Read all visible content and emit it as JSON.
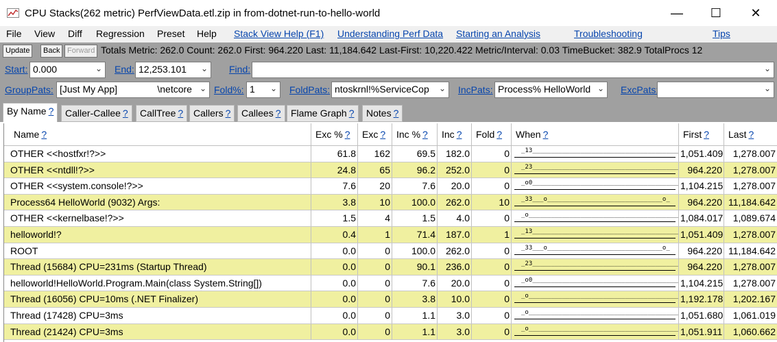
{
  "window": {
    "title": "CPU Stacks(262 metric) PerfViewData.etl.zip in from-dotnet-run-to-hello-world",
    "minimize": "—",
    "maximize": "☐",
    "close": "✕"
  },
  "menu": {
    "items": [
      "File",
      "View",
      "Diff",
      "Regression",
      "Preset",
      "Help"
    ],
    "links": [
      "Stack View Help (F1)",
      "Understanding Perf Data",
      "Starting an Analysis",
      "Troubleshooting",
      "Tips"
    ]
  },
  "toolbar": {
    "update": "Update",
    "back": "Back",
    "forward": "Forward",
    "totals": "Totals Metric: 262.0  Count: 262.0  First: 964.220  Last: 11,184.642  Last-First: 10,220.422  Metric/Interval: 0.03  TimeBucket: 382.9  TotalProcs 12"
  },
  "filters": {
    "start_label": "Start:",
    "start_value": "0.000",
    "end_label": "End:",
    "end_value": "12,253.101",
    "find_label": "Find:",
    "find_value": "",
    "grouppats_label": "GroupPats:",
    "grouppats_value": "[Just My App]               \\netcore",
    "fold_label": "Fold%:",
    "fold_value": "1",
    "foldpats_label": "FoldPats:",
    "foldpats_value": "ntoskrnl!%ServiceCop",
    "incpats_label": "IncPats:",
    "incpats_value": "Process% HelloWorld",
    "excpats_label": "ExcPats:",
    "excpats_value": ""
  },
  "tabs": [
    "By Name",
    "Caller-Callee",
    "CallTree",
    "Callers",
    "Callees",
    "Flame Graph",
    "Notes"
  ],
  "tab_help": "?",
  "columns": [
    "Name",
    "Exc %",
    "Exc",
    "Inc %",
    "Inc",
    "Fold",
    "When",
    "First",
    "Last"
  ],
  "rows": [
    {
      "name": "OTHER <<hostfxr!?>>",
      "exc_pct": "61.8",
      "exc": "162",
      "inc_pct": "69.5",
      "inc": "182.0",
      "fold": "0",
      "when": "_13____________________________________________",
      "first": "1,051.409",
      "last": "1,278.007"
    },
    {
      "name": "OTHER <<ntdll!?>>",
      "exc_pct": "24.8",
      "exc": "65",
      "inc_pct": "96.2",
      "inc": "252.0",
      "fold": "0",
      "when": "_23____________________________________________",
      "first": "964.220",
      "last": "1,278.007"
    },
    {
      "name": "OTHER <<system.console!?>>",
      "exc_pct": "7.6",
      "exc": "20",
      "inc_pct": "7.6",
      "inc": "20.0",
      "fold": "0",
      "when": "_o0____________________________________________",
      "first": "1,104.215",
      "last": "1,278.007"
    },
    {
      "name": "Process64 HelloWorld (9032) Args:",
      "exc_pct": "3.8",
      "exc": "10",
      "inc_pct": "100.0",
      "inc": "262.0",
      "fold": "10",
      "when": "_33___o_______________________________o_",
      "first": "964.220",
      "last": "11,184.642"
    },
    {
      "name": "OTHER <<kernelbase!?>>",
      "exc_pct": "1.5",
      "exc": "4",
      "inc_pct": "1.5",
      "inc": "4.0",
      "fold": "0",
      "when": "_o_____________________________________________",
      "first": "1,084.017",
      "last": "1,089.674"
    },
    {
      "name": "helloworld!?",
      "exc_pct": "0.4",
      "exc": "1",
      "inc_pct": "71.4",
      "inc": "187.0",
      "fold": "1",
      "when": "_13____________________________________________",
      "first": "1,051.409",
      "last": "1,278.007"
    },
    {
      "name": "ROOT",
      "exc_pct": "0.0",
      "exc": "0",
      "inc_pct": "100.0",
      "inc": "262.0",
      "fold": "0",
      "when": "_33___o_______________________________o_",
      "first": "964.220",
      "last": "11,184.642"
    },
    {
      "name": "Thread (15684) CPU=231ms (Startup Thread)",
      "exc_pct": "0.0",
      "exc": "0",
      "inc_pct": "90.1",
      "inc": "236.0",
      "fold": "0",
      "when": "_23____________________________________________",
      "first": "964.220",
      "last": "1,278.007"
    },
    {
      "name": "helloworld!HelloWorld.Program.Main(class System.String[])",
      "exc_pct": "0.0",
      "exc": "0",
      "inc_pct": "7.6",
      "inc": "20.0",
      "fold": "0",
      "when": "_o0____________________________________________",
      "first": "1,104.215",
      "last": "1,278.007"
    },
    {
      "name": "Thread (16056) CPU=10ms (.NET Finalizer)",
      "exc_pct": "0.0",
      "exc": "0",
      "inc_pct": "3.8",
      "inc": "10.0",
      "fold": "0",
      "when": "_o_____________________________________________",
      "first": "1,192.178",
      "last": "1,202.167"
    },
    {
      "name": "Thread (17428) CPU=3ms",
      "exc_pct": "0.0",
      "exc": "0",
      "inc_pct": "1.1",
      "inc": "3.0",
      "fold": "0",
      "when": "_o_____________________________________________",
      "first": "1,051.680",
      "last": "1,061.019"
    },
    {
      "name": "Thread (21424) CPU=3ms",
      "exc_pct": "0.0",
      "exc": "0",
      "inc_pct": "1.1",
      "inc": "3.0",
      "fold": "0",
      "when": "_o_____________________________________________",
      "first": "1,051.911",
      "last": "1,060.662"
    }
  ],
  "colors": {
    "row_highlight": "#f0f0a0",
    "link": "#0645ad",
    "panel": "#a0a0a0"
  }
}
